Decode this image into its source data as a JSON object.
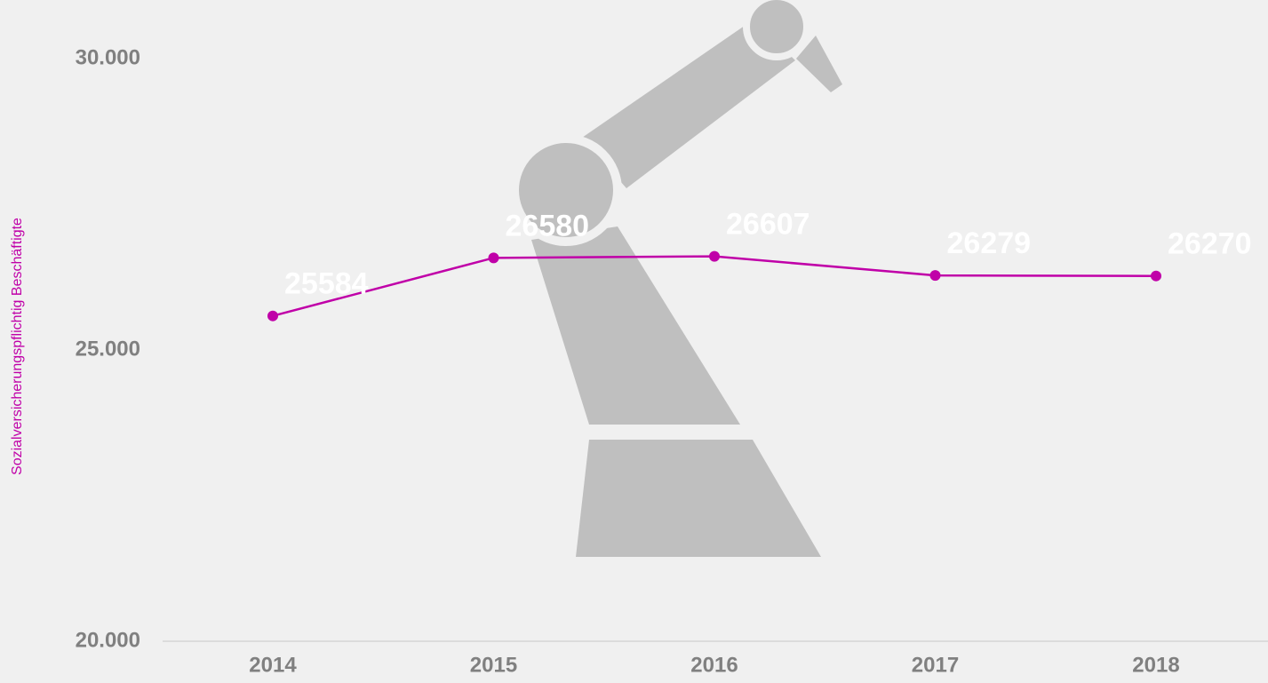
{
  "chart_data": {
    "type": "line",
    "y_label": "Sozialversicherungspflichtig Beschäftigte",
    "categories": [
      "2014",
      "2015",
      "2016",
      "2017",
      "2018"
    ],
    "series": [
      {
        "name": "Sozialversicherungspflichtig Beschäftigte",
        "color": "#c000a8",
        "values": [
          25584,
          26580,
          26607,
          26279,
          26270
        ]
      }
    ],
    "ylim": [
      20000,
      30000
    ],
    "yticks": [
      {
        "value": 20000,
        "label": "20.000"
      },
      {
        "value": 25000,
        "label": "25.000"
      },
      {
        "value": 30000,
        "label": "30.000"
      }
    ],
    "grid": false
  }
}
